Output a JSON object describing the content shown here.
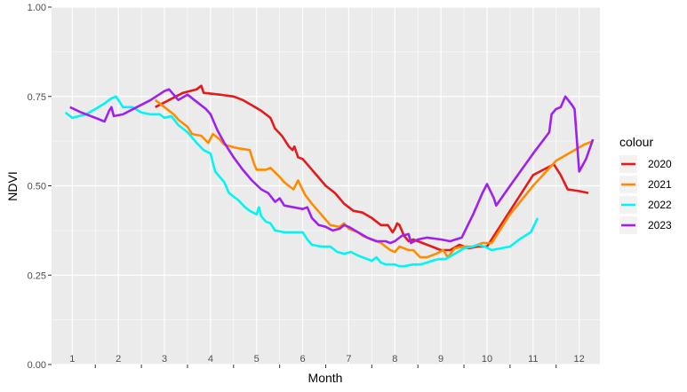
{
  "chart_data": {
    "type": "line",
    "xlabel": "Month",
    "ylabel": "NDVI",
    "xlim": [
      0.55,
      12.45
    ],
    "ylim": [
      0,
      1
    ],
    "yticks": [
      0,
      0.25,
      0.5,
      0.75,
      1
    ],
    "ytick_labels": [
      "0.00",
      "0.25",
      "0.50",
      "0.75",
      "1.00"
    ],
    "xticks": [
      1,
      2,
      3,
      4,
      5,
      6,
      7,
      8,
      9,
      10,
      11,
      12
    ],
    "xtick_labels": [
      "1",
      "2",
      "3",
      "4",
      "5",
      "6",
      "7",
      "8",
      "9",
      "10",
      "11",
      "12"
    ],
    "grid": true,
    "legend": {
      "title": "colour",
      "position": "right"
    },
    "series": [
      {
        "name": "2020",
        "color": "#e41a1c",
        "points": [
          [
            2.8,
            0.72
          ],
          [
            3.1,
            0.74
          ],
          [
            3.4,
            0.76
          ],
          [
            3.7,
            0.77
          ],
          [
            3.8,
            0.78
          ],
          [
            3.85,
            0.76
          ],
          [
            4.2,
            0.755
          ],
          [
            4.5,
            0.75
          ],
          [
            4.7,
            0.74
          ],
          [
            4.9,
            0.725
          ],
          [
            5.1,
            0.71
          ],
          [
            5.3,
            0.69
          ],
          [
            5.4,
            0.66
          ],
          [
            5.55,
            0.64
          ],
          [
            5.7,
            0.61
          ],
          [
            5.78,
            0.6
          ],
          [
            5.82,
            0.61
          ],
          [
            5.9,
            0.58
          ],
          [
            6.0,
            0.575
          ],
          [
            6.1,
            0.56
          ],
          [
            6.3,
            0.53
          ],
          [
            6.5,
            0.5
          ],
          [
            6.7,
            0.48
          ],
          [
            6.9,
            0.45
          ],
          [
            7.1,
            0.43
          ],
          [
            7.3,
            0.425
          ],
          [
            7.5,
            0.41
          ],
          [
            7.7,
            0.39
          ],
          [
            7.85,
            0.39
          ],
          [
            7.95,
            0.37
          ],
          [
            8.0,
            0.38
          ],
          [
            8.05,
            0.395
          ],
          [
            8.1,
            0.39
          ],
          [
            8.2,
            0.36
          ],
          [
            8.3,
            0.345
          ],
          [
            8.4,
            0.35
          ],
          [
            8.6,
            0.34
          ],
          [
            8.8,
            0.33
          ],
          [
            9.0,
            0.32
          ],
          [
            9.2,
            0.32
          ],
          [
            9.4,
            0.335
          ],
          [
            9.6,
            0.325
          ],
          [
            9.8,
            0.33
          ],
          [
            10.0,
            0.33
          ],
          [
            10.5,
            0.43
          ],
          [
            11.0,
            0.53
          ],
          [
            11.45,
            0.56
          ],
          [
            11.6,
            0.53
          ],
          [
            11.75,
            0.49
          ],
          [
            12.0,
            0.485
          ],
          [
            12.2,
            0.48
          ]
        ]
      },
      {
        "name": "2021",
        "color": "#ff8c00",
        "points": [
          [
            2.8,
            0.74
          ],
          [
            3.0,
            0.72
          ],
          [
            3.2,
            0.7
          ],
          [
            3.3,
            0.685
          ],
          [
            3.5,
            0.665
          ],
          [
            3.6,
            0.645
          ],
          [
            3.8,
            0.64
          ],
          [
            3.95,
            0.62
          ],
          [
            4.05,
            0.645
          ],
          [
            4.2,
            0.63
          ],
          [
            4.3,
            0.615
          ],
          [
            4.6,
            0.605
          ],
          [
            4.85,
            0.6
          ],
          [
            4.95,
            0.56
          ],
          [
            5.0,
            0.545
          ],
          [
            5.2,
            0.545
          ],
          [
            5.3,
            0.55
          ],
          [
            5.5,
            0.525
          ],
          [
            5.6,
            0.51
          ],
          [
            5.8,
            0.49
          ],
          [
            5.9,
            0.515
          ],
          [
            6.05,
            0.475
          ],
          [
            6.2,
            0.45
          ],
          [
            6.4,
            0.42
          ],
          [
            6.6,
            0.39
          ],
          [
            6.8,
            0.385
          ],
          [
            6.9,
            0.395
          ],
          [
            7.0,
            0.38
          ],
          [
            7.2,
            0.37
          ],
          [
            7.3,
            0.36
          ],
          [
            7.5,
            0.35
          ],
          [
            7.7,
            0.34
          ],
          [
            7.9,
            0.32
          ],
          [
            8.0,
            0.315
          ],
          [
            8.1,
            0.33
          ],
          [
            8.3,
            0.32
          ],
          [
            8.4,
            0.32
          ],
          [
            8.55,
            0.3
          ],
          [
            8.7,
            0.3
          ],
          [
            8.9,
            0.31
          ],
          [
            9.05,
            0.32
          ],
          [
            9.15,
            0.3
          ],
          [
            9.3,
            0.325
          ],
          [
            9.5,
            0.33
          ],
          [
            9.7,
            0.33
          ],
          [
            9.9,
            0.34
          ],
          [
            10.1,
            0.34
          ],
          [
            10.5,
            0.42
          ],
          [
            11.0,
            0.5
          ],
          [
            11.5,
            0.57
          ],
          [
            11.9,
            0.6
          ],
          [
            12.1,
            0.615
          ],
          [
            12.3,
            0.625
          ]
        ]
      },
      {
        "name": "2022",
        "color": "#00f5f5",
        "points": [
          [
            0.85,
            0.705
          ],
          [
            1.0,
            0.69
          ],
          [
            1.15,
            0.695
          ],
          [
            1.3,
            0.7
          ],
          [
            1.5,
            0.715
          ],
          [
            1.7,
            0.73
          ],
          [
            1.85,
            0.745
          ],
          [
            1.95,
            0.75
          ],
          [
            2.1,
            0.72
          ],
          [
            2.3,
            0.72
          ],
          [
            2.5,
            0.705
          ],
          [
            2.7,
            0.7
          ],
          [
            2.9,
            0.7
          ],
          [
            3.0,
            0.69
          ],
          [
            3.15,
            0.695
          ],
          [
            3.3,
            0.67
          ],
          [
            3.5,
            0.65
          ],
          [
            3.7,
            0.62
          ],
          [
            3.85,
            0.6
          ],
          [
            4.0,
            0.59
          ],
          [
            4.1,
            0.54
          ],
          [
            4.3,
            0.51
          ],
          [
            4.4,
            0.48
          ],
          [
            4.6,
            0.46
          ],
          [
            4.75,
            0.44
          ],
          [
            4.85,
            0.43
          ],
          [
            5.0,
            0.42
          ],
          [
            5.05,
            0.44
          ],
          [
            5.1,
            0.415
          ],
          [
            5.2,
            0.4
          ],
          [
            5.3,
            0.395
          ],
          [
            5.4,
            0.375
          ],
          [
            5.6,
            0.37
          ],
          [
            5.8,
            0.37
          ],
          [
            6.0,
            0.37
          ],
          [
            6.1,
            0.35
          ],
          [
            6.2,
            0.335
          ],
          [
            6.4,
            0.33
          ],
          [
            6.6,
            0.33
          ],
          [
            6.75,
            0.315
          ],
          [
            6.9,
            0.31
          ],
          [
            7.05,
            0.315
          ],
          [
            7.2,
            0.305
          ],
          [
            7.4,
            0.295
          ],
          [
            7.5,
            0.29
          ],
          [
            7.6,
            0.3
          ],
          [
            7.7,
            0.285
          ],
          [
            7.8,
            0.28
          ],
          [
            8.0,
            0.28
          ],
          [
            8.1,
            0.275
          ],
          [
            8.2,
            0.275
          ],
          [
            8.4,
            0.28
          ],
          [
            8.55,
            0.28
          ],
          [
            8.7,
            0.285
          ],
          [
            8.8,
            0.29
          ],
          [
            8.95,
            0.295
          ],
          [
            9.1,
            0.295
          ],
          [
            9.3,
            0.31
          ],
          [
            9.5,
            0.325
          ],
          [
            9.7,
            0.33
          ],
          [
            9.8,
            0.335
          ],
          [
            9.95,
            0.33
          ],
          [
            10.1,
            0.32
          ],
          [
            10.3,
            0.325
          ],
          [
            10.5,
            0.33
          ],
          [
            10.7,
            0.35
          ],
          [
            10.95,
            0.37
          ],
          [
            11.1,
            0.41
          ]
        ]
      },
      {
        "name": "2023",
        "color": "#a020f0",
        "points": [
          [
            0.95,
            0.72
          ],
          [
            1.2,
            0.705
          ],
          [
            1.5,
            0.69
          ],
          [
            1.7,
            0.68
          ],
          [
            1.8,
            0.71
          ],
          [
            1.85,
            0.72
          ],
          [
            1.9,
            0.695
          ],
          [
            2.1,
            0.7
          ],
          [
            2.4,
            0.72
          ],
          [
            2.7,
            0.74
          ],
          [
            3.0,
            0.765
          ],
          [
            3.1,
            0.77
          ],
          [
            3.3,
            0.74
          ],
          [
            3.5,
            0.755
          ],
          [
            3.7,
            0.735
          ],
          [
            3.9,
            0.715
          ],
          [
            4.0,
            0.7
          ],
          [
            4.15,
            0.655
          ],
          [
            4.3,
            0.62
          ],
          [
            4.5,
            0.58
          ],
          [
            4.7,
            0.545
          ],
          [
            4.9,
            0.515
          ],
          [
            5.1,
            0.49
          ],
          [
            5.25,
            0.48
          ],
          [
            5.4,
            0.455
          ],
          [
            5.5,
            0.465
          ],
          [
            5.6,
            0.445
          ],
          [
            5.8,
            0.44
          ],
          [
            6.0,
            0.435
          ],
          [
            6.1,
            0.44
          ],
          [
            6.2,
            0.41
          ],
          [
            6.35,
            0.39
          ],
          [
            6.5,
            0.385
          ],
          [
            6.65,
            0.375
          ],
          [
            6.8,
            0.38
          ],
          [
            6.9,
            0.39
          ],
          [
            7.0,
            0.385
          ],
          [
            7.2,
            0.37
          ],
          [
            7.4,
            0.355
          ],
          [
            7.6,
            0.345
          ],
          [
            7.8,
            0.345
          ],
          [
            7.9,
            0.34
          ],
          [
            8.0,
            0.345
          ],
          [
            8.15,
            0.36
          ],
          [
            8.3,
            0.365
          ],
          [
            8.35,
            0.34
          ],
          [
            8.5,
            0.35
          ],
          [
            8.7,
            0.355
          ],
          [
            9.0,
            0.35
          ],
          [
            9.2,
            0.345
          ],
          [
            9.45,
            0.355
          ],
          [
            9.7,
            0.42
          ],
          [
            9.9,
            0.48
          ],
          [
            10.0,
            0.505
          ],
          [
            10.15,
            0.465
          ],
          [
            10.2,
            0.445
          ],
          [
            10.5,
            0.5
          ],
          [
            11.0,
            0.59
          ],
          [
            11.35,
            0.65
          ],
          [
            11.4,
            0.7
          ],
          [
            11.5,
            0.715
          ],
          [
            11.6,
            0.72
          ],
          [
            11.7,
            0.75
          ],
          [
            11.85,
            0.725
          ],
          [
            11.9,
            0.715
          ],
          [
            12.0,
            0.54
          ],
          [
            12.15,
            0.575
          ],
          [
            12.3,
            0.63
          ]
        ]
      }
    ]
  }
}
